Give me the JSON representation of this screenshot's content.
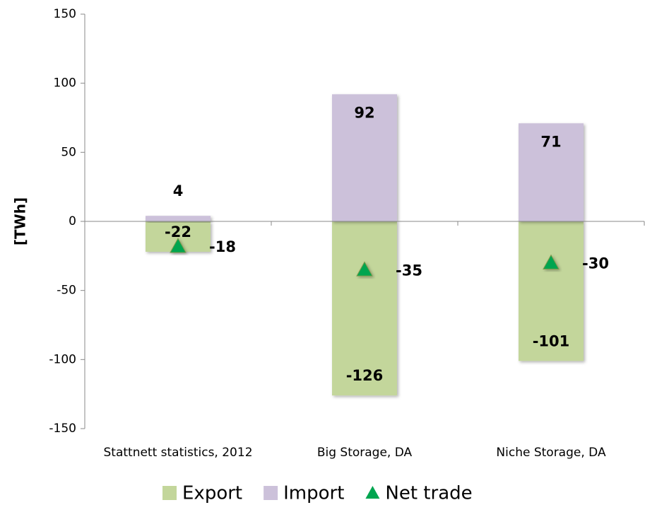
{
  "chart_data": {
    "type": "bar",
    "categories": [
      "Stattnett statistics, 2012",
      "Big Storage, DA",
      "Niche Storage, DA"
    ],
    "series": [
      {
        "name": "Export",
        "color": "#c3d69b",
        "values": [
          -22,
          -126,
          -101
        ]
      },
      {
        "name": "Import",
        "color": "#ccc1da",
        "values": [
          4,
          92,
          71
        ]
      },
      {
        "name": "Net trade",
        "color": "#00a550",
        "marker": "triangle",
        "values": [
          -18,
          -35,
          -30
        ]
      }
    ],
    "y_label": "[TWh]",
    "ylim": [
      -150,
      150
    ],
    "yticks": [
      -150,
      -100,
      -50,
      0,
      50,
      100,
      150
    ],
    "legend": "bottom"
  }
}
